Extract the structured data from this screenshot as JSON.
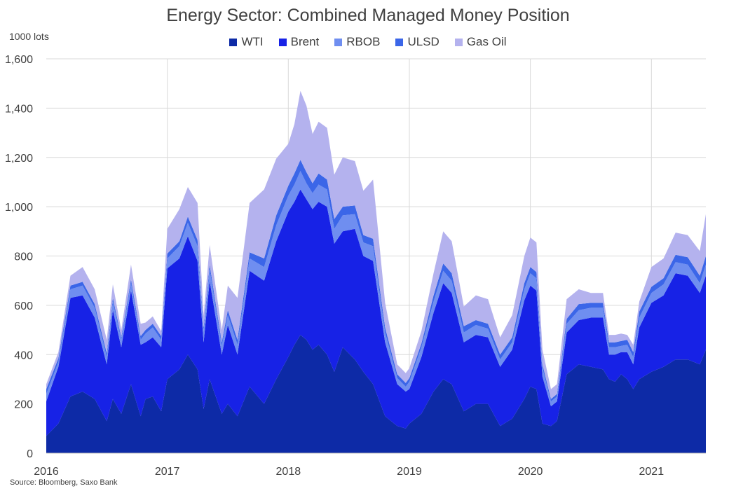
{
  "chart_data": {
    "type": "area",
    "stacked": true,
    "title": "Energy Sector: Combined Managed Money Position",
    "unit_label": "1000 lots",
    "ylim": [
      0,
      1600
    ],
    "yticks": [
      0,
      200,
      400,
      600,
      800,
      1000,
      1200,
      1400,
      1600
    ],
    "ytick_labels": [
      "0",
      "200",
      "400",
      "600",
      "800",
      "1,000",
      "1,200",
      "1,400",
      "1,600"
    ],
    "xlim": [
      2016.0,
      2021.45
    ],
    "xticks": [
      2016,
      2017,
      2018,
      2019,
      2020,
      2021
    ],
    "xtick_labels": [
      "2016",
      "2017",
      "2018",
      "2019",
      "2020",
      "2021"
    ],
    "grid": "vertical-at-years-and-horizontal",
    "legend_position": "top",
    "source": "Source: Bloomberg, Saxo Bank",
    "x": [
      2016.0,
      2016.1,
      2016.2,
      2016.3,
      2016.4,
      2016.5,
      2016.55,
      2016.62,
      2016.7,
      2016.78,
      2016.82,
      2016.88,
      2016.95,
      2017.0,
      2017.1,
      2017.17,
      2017.25,
      2017.3,
      2017.35,
      2017.45,
      2017.5,
      2017.58,
      2017.68,
      2017.8,
      2017.9,
      2018.0,
      2018.05,
      2018.1,
      2018.15,
      2018.2,
      2018.25,
      2018.32,
      2018.38,
      2018.45,
      2018.55,
      2018.62,
      2018.7,
      2018.8,
      2018.9,
      2018.97,
      2019.0,
      2019.1,
      2019.2,
      2019.28,
      2019.35,
      2019.45,
      2019.55,
      2019.65,
      2019.75,
      2019.85,
      2019.95,
      2020.0,
      2020.05,
      2020.1,
      2020.17,
      2020.22,
      2020.3,
      2020.4,
      2020.5,
      2020.6,
      2020.65,
      2020.7,
      2020.75,
      2020.8,
      2020.85,
      2020.9,
      2021.0,
      2021.1,
      2021.2,
      2021.3,
      2021.4,
      2021.45
    ],
    "series": [
      {
        "name": "WTI",
        "color": "#0d2aa6",
        "values": [
          70,
          120,
          230,
          250,
          220,
          130,
          220,
          160,
          280,
          150,
          220,
          230,
          170,
          300,
          340,
          400,
          340,
          180,
          300,
          160,
          200,
          150,
          270,
          200,
          300,
          390,
          440,
          480,
          460,
          420,
          440,
          400,
          330,
          430,
          380,
          330,
          280,
          150,
          110,
          100,
          120,
          160,
          250,
          300,
          280,
          170,
          200,
          200,
          110,
          140,
          220,
          270,
          260,
          120,
          110,
          130,
          320,
          360,
          350,
          340,
          300,
          290,
          320,
          300,
          260,
          300,
          330,
          350,
          380,
          380,
          360,
          420
        ]
      },
      {
        "name": "Brent",
        "color": "#1722e6",
        "values": [
          140,
          230,
          400,
          390,
          330,
          230,
          360,
          270,
          380,
          290,
          230,
          240,
          260,
          450,
          450,
          480,
          440,
          270,
          400,
          240,
          320,
          250,
          470,
          500,
          560,
          590,
          580,
          590,
          570,
          570,
          580,
          600,
          520,
          470,
          530,
          470,
          500,
          300,
          170,
          150,
          140,
          230,
          320,
          390,
          370,
          280,
          280,
          270,
          240,
          280,
          400,
          410,
          400,
          190,
          80,
          80,
          170,
          180,
          200,
          210,
          100,
          110,
          90,
          110,
          100,
          210,
          280,
          290,
          350,
          340,
          290,
          300
        ]
      },
      {
        "name": "RBOB",
        "color": "#6f8ef0",
        "values": [
          30,
          20,
          35,
          40,
          40,
          30,
          35,
          30,
          30,
          20,
          35,
          40,
          30,
          40,
          50,
          55,
          60,
          45,
          45,
          35,
          40,
          40,
          50,
          55,
          65,
          65,
          70,
          75,
          65,
          65,
          70,
          70,
          60,
          65,
          60,
          55,
          60,
          40,
          25,
          20,
          30,
          40,
          45,
          50,
          50,
          40,
          40,
          35,
          30,
          30,
          45,
          50,
          50,
          35,
          20,
          20,
          35,
          40,
          40,
          40,
          30,
          30,
          25,
          30,
          30,
          40,
          40,
          45,
          45,
          45,
          40,
          45
        ]
      },
      {
        "name": "ULSD",
        "color": "#3b66e8",
        "values": [
          20,
          15,
          15,
          15,
          15,
          15,
          15,
          10,
          15,
          15,
          15,
          15,
          15,
          20,
          20,
          25,
          25,
          15,
          20,
          15,
          20,
          20,
          25,
          35,
          40,
          40,
          45,
          45,
          45,
          40,
          45,
          40,
          40,
          35,
          35,
          30,
          30,
          20,
          15,
          15,
          15,
          15,
          25,
          30,
          30,
          25,
          20,
          20,
          20,
          20,
          25,
          25,
          25,
          15,
          10,
          10,
          20,
          25,
          20,
          20,
          20,
          20,
          20,
          20,
          20,
          25,
          25,
          25,
          30,
          30,
          30,
          35
        ]
      },
      {
        "name": "Gas Oil",
        "color": "#b4b2ee",
        "values": [
          20,
          25,
          40,
          60,
          60,
          55,
          55,
          30,
          60,
          50,
          30,
          30,
          20,
          100,
          130,
          120,
          150,
          50,
          80,
          50,
          100,
          170,
          200,
          280,
          230,
          170,
          200,
          280,
          270,
          200,
          210,
          210,
          180,
          200,
          180,
          180,
          240,
          100,
          40,
          40,
          40,
          50,
          90,
          130,
          130,
          80,
          100,
          100,
          70,
          90,
          110,
          120,
          120,
          60,
          40,
          40,
          80,
          60,
          40,
          40,
          30,
          30,
          30,
          20,
          30,
          40,
          80,
          80,
          90,
          90,
          100,
          170
        ]
      }
    ]
  }
}
